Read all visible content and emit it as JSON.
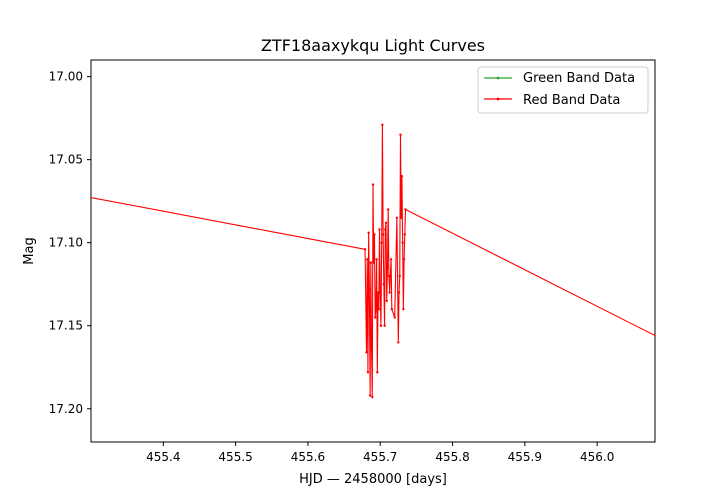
{
  "chart_data": {
    "type": "line",
    "title": "ZTF18aaxykqu Light Curves",
    "xlabel": "HJD — 2458000 [days]",
    "ylabel": "Mag",
    "xlim": [
      455.3,
      456.08
    ],
    "ylim": [
      17.22,
      16.99
    ],
    "y_inverted": true,
    "x_ticks": [
      "455.4",
      "455.5",
      "455.6",
      "455.7",
      "455.8",
      "455.9",
      "456.0"
    ],
    "y_ticks": [
      "17.00",
      "17.05",
      "17.10",
      "17.15",
      "17.20"
    ],
    "legend_position": "top-right",
    "grid": false,
    "series": [
      {
        "name": "Green Band Data",
        "color": "#2ca02c",
        "x": [],
        "y": []
      },
      {
        "name": "Red Band Data",
        "color": "#ff0000",
        "x": [
          455.29,
          455.679,
          455.681,
          455.682,
          455.683,
          455.684,
          455.685,
          455.686,
          455.687,
          455.688,
          455.689,
          455.69,
          455.691,
          455.692,
          455.693,
          455.694,
          455.695,
          455.696,
          455.697,
          455.698,
          455.699,
          455.7,
          455.701,
          455.702,
          455.703,
          455.704,
          455.705,
          455.706,
          455.707,
          455.708,
          455.709,
          455.71,
          455.711,
          455.712,
          455.713,
          455.714,
          455.715,
          455.716,
          455.72,
          455.723,
          455.725,
          455.726,
          455.727,
          455.728,
          455.729,
          455.73,
          455.731,
          455.732,
          455.733,
          455.734,
          455.735,
          456.085
        ],
        "y": [
          17.072,
          17.104,
          17.166,
          17.11,
          17.178,
          17.094,
          17.128,
          17.192,
          17.112,
          17.164,
          17.193,
          17.065,
          17.112,
          17.095,
          17.145,
          17.14,
          17.11,
          17.178,
          17.13,
          17.14,
          17.092,
          17.13,
          17.15,
          17.1,
          17.029,
          17.095,
          17.125,
          17.15,
          17.092,
          17.088,
          17.135,
          17.115,
          17.08,
          17.12,
          17.13,
          17.12,
          17.11,
          17.14,
          17.145,
          17.085,
          17.16,
          17.13,
          17.12,
          17.035,
          17.085,
          17.06,
          17.1,
          17.14,
          17.11,
          17.095,
          17.08,
          17.157
        ]
      }
    ]
  }
}
